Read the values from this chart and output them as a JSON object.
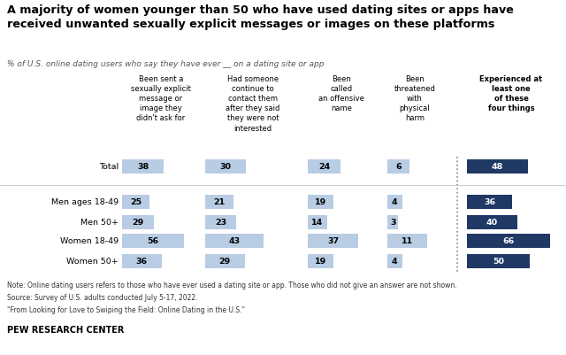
{
  "title": "A majority of women younger than 50 who have used dating sites or apps have\nreceived unwanted sexually explicit messages or images on these platforms",
  "subtitle": "% of U.S. online dating users who say they have ever __ on a dating site or app",
  "col_headers": [
    "Been sent a\nsexually explicit\nmessage or\nimage they\ndidn't ask for",
    "Had someone\ncontinue to\ncontact them\nafter they said\nthey were not\ninterested",
    "Been\ncalled\nan offensive\nname",
    "Been\nthreatened\nwith\nphysical\nharm",
    "Experienced at\nleast one\nof these\nfour things"
  ],
  "row_labels": [
    "Total",
    "Men ages 18-49",
    "Men 50+",
    "Women 18-49",
    "Women 50+"
  ],
  "values": [
    [
      38,
      30,
      24,
      6,
      48
    ],
    [
      25,
      21,
      19,
      4,
      36
    ],
    [
      29,
      23,
      14,
      3,
      40
    ],
    [
      56,
      43,
      37,
      11,
      66
    ],
    [
      36,
      29,
      19,
      4,
      50
    ]
  ],
  "light_blue": "#b8cce4",
  "dark_blue": "#1f3864",
  "col_max": [
    70,
    70,
    50,
    15,
    70
  ],
  "note1": "Note: Online dating users refers to those who have ever used a dating site or app. Those who did not give an answer are not shown.",
  "note2": "Source: Survey of U.S. adults conducted July 5-17, 2022.",
  "note3": "\"From Looking for Love to Swiping the Field: Online Dating in the U.S.\"",
  "source": "PEW RESEARCH CENTER",
  "bg_color": "#ffffff"
}
